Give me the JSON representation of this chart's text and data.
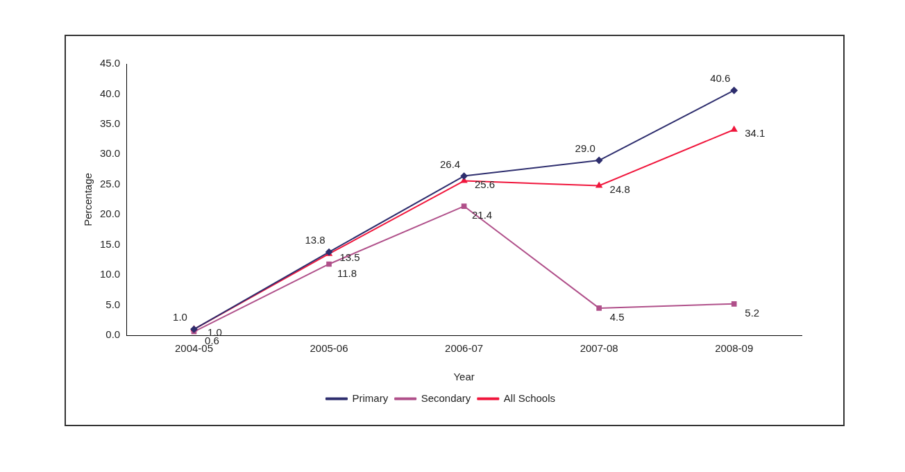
{
  "chart_data": {
    "type": "line",
    "xlabel": "Year",
    "ylabel": "Percentage",
    "categories": [
      "2004-05",
      "2005-06",
      "2006-07",
      "2007-08",
      "2008-09"
    ],
    "series": [
      {
        "name": "Primary",
        "color": "#2e2e6e",
        "marker": "diamond",
        "values": [
          1.0,
          13.8,
          26.4,
          29.0,
          40.6
        ],
        "value_labels": [
          "1.0",
          "13.8",
          "26.4",
          "29.0",
          "40.6"
        ]
      },
      {
        "name": "Secondary",
        "color": "#b0508a",
        "marker": "square",
        "values": [
          0.6,
          11.8,
          21.4,
          4.5,
          5.2
        ],
        "value_labels": [
          "0.6",
          "11.8",
          "21.4",
          "4.5",
          "5.2"
        ]
      },
      {
        "name": "All Schools",
        "color": "#f0163c",
        "marker": "triangle",
        "values": [
          1.0,
          13.5,
          25.6,
          24.8,
          34.1
        ],
        "value_labels": [
          "1.0",
          "13.5",
          "25.6",
          "24.8",
          "34.1"
        ]
      }
    ],
    "ylim": [
      0,
      45
    ],
    "yticks": [
      {
        "value": 0,
        "label": "0.0"
      },
      {
        "value": 5,
        "label": "5.0"
      },
      {
        "value": 10,
        "label": "10.0"
      },
      {
        "value": 15,
        "label": "15.0"
      },
      {
        "value": 20,
        "label": "20.0"
      },
      {
        "value": 25,
        "label": "25.0"
      },
      {
        "value": 30,
        "label": "30.0"
      },
      {
        "value": 35,
        "label": "35.0"
      },
      {
        "value": 40,
        "label": "40.0"
      },
      {
        "value": 45,
        "label": "45.0"
      }
    ],
    "grid": false,
    "legend": "bottom"
  }
}
